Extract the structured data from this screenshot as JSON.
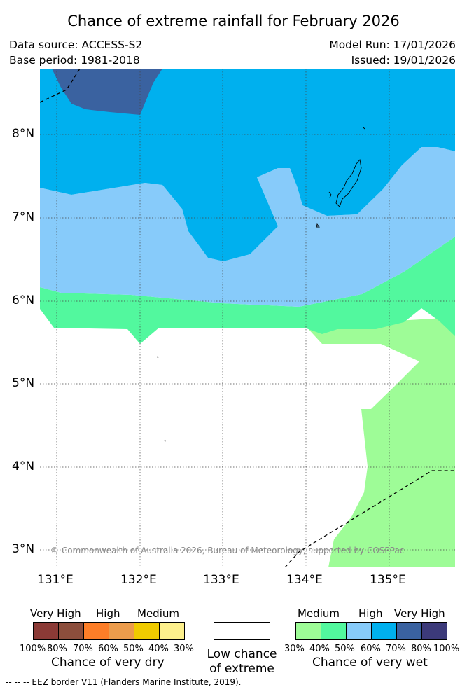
{
  "title": "Chance of extreme rainfall for February 2026",
  "data_source": "Data source: ACCESS-S2",
  "base_period": "Base period: 1981-2018",
  "model_run": "Model Run: 17/01/2026",
  "issued": "Issued: 19/01/2026",
  "map": {
    "lat_labels": [
      "8°N",
      "7°N",
      "6°N",
      "5°N",
      "4°N",
      "3°N"
    ],
    "lon_labels": [
      "131°E",
      "132°E",
      "133°E",
      "134°E",
      "135°E"
    ],
    "copyright": "© Commonwealth of Australia 2026, Bureau of Meteorology, supported by COSPPac",
    "colors": {
      "wet_very_high_80_100": "#3c3a7a",
      "wet_very_high_70_80": "#3a62a0",
      "wet_high_60_70": "#00b0ee",
      "wet_high_50_60": "#87cbfa",
      "wet_medium_40_50": "#52f89e",
      "wet_medium_30_40": "#9efc97",
      "low": "#ffffff"
    }
  },
  "legend_dry": {
    "labels": [
      "Very High",
      "High",
      "Medium"
    ],
    "percentages": [
      "100%",
      "80%",
      "70%",
      "60%",
      "50%",
      "40%",
      "30%"
    ],
    "caption": "Chance of very dry",
    "colors": [
      "#8b3a36",
      "#8c4e3c",
      "#fd7e28",
      "#ec9c4c",
      "#f0cb00",
      "#fdf08c"
    ]
  },
  "legend_low": {
    "caption_line1": "Low chance",
    "caption_line2": "of extreme"
  },
  "legend_wet": {
    "labels": [
      "Medium",
      "High",
      "Very High"
    ],
    "percentages": [
      "30%",
      "40%",
      "50%",
      "60%",
      "70%",
      "80%",
      "100%"
    ],
    "caption": "Chance of very wet",
    "colors": [
      "#9efc97",
      "#52f89e",
      "#87cbfa",
      "#00b0ee",
      "#3a62a0",
      "#3c3a7a"
    ]
  },
  "footnote": "-- -- -- EEZ border V11 (Flanders Marine Institute, 2019)."
}
